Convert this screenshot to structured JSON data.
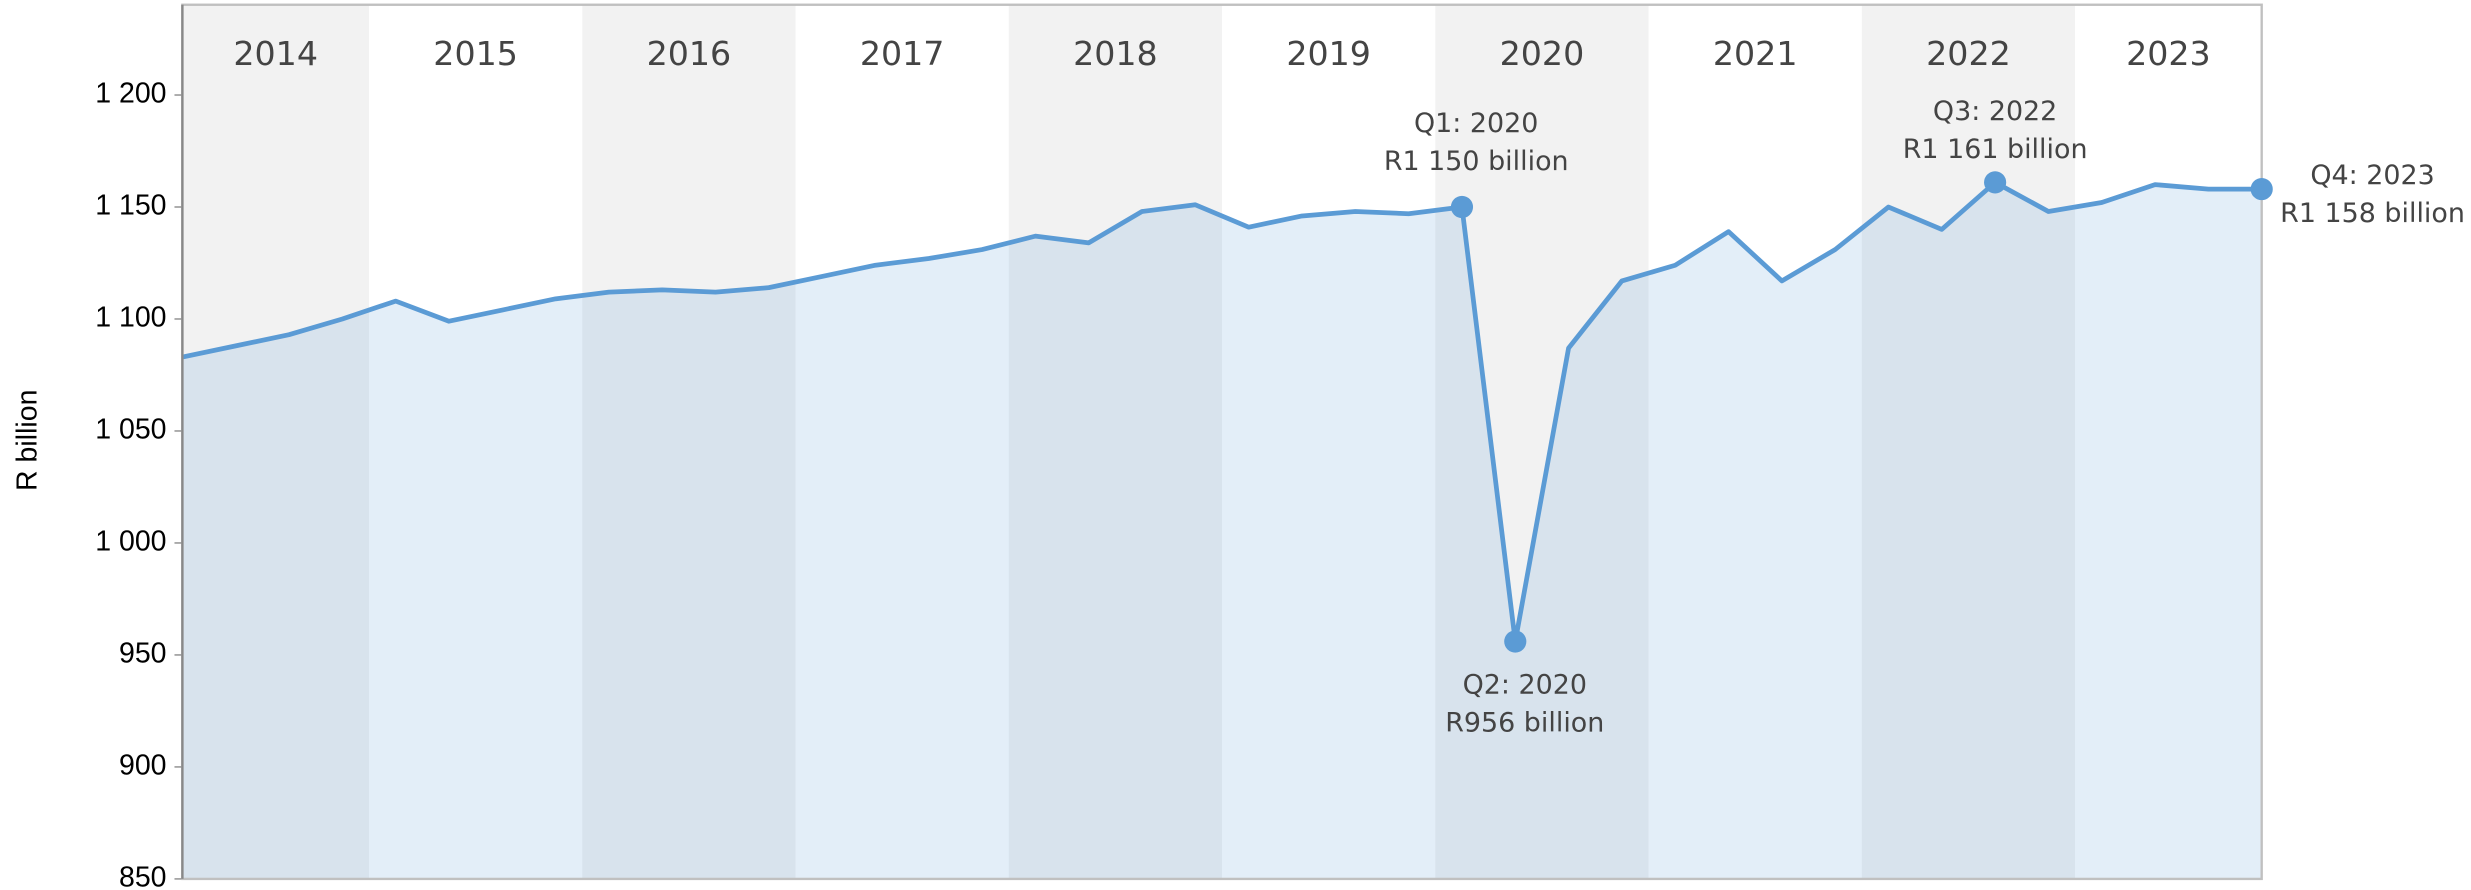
{
  "chart_data": {
    "type": "area",
    "y_label": "R billion",
    "years": [
      "2014",
      "2015",
      "2016",
      "2017",
      "2018",
      "2019",
      "2020",
      "2021",
      "2022",
      "2023"
    ],
    "categories": [
      null,
      null,
      null,
      null,
      null,
      null,
      null,
      null,
      null,
      null,
      null,
      null,
      null,
      null,
      null,
      null,
      null,
      null,
      null,
      null,
      null,
      null,
      null,
      null,
      null,
      null,
      null,
      null,
      null,
      null,
      null,
      null,
      null,
      null,
      null,
      null,
      null,
      null,
      null,
      null
    ],
    "values": [
      1083,
      1088,
      1093,
      1100,
      1108,
      1099,
      1104,
      1109,
      1112,
      1113,
      1112,
      1114,
      1119,
      1124,
      1127,
      1131,
      1137,
      1134,
      1148,
      1151,
      1141,
      1146,
      1148,
      1147,
      1150,
      956,
      1087,
      1117,
      1124,
      1139,
      1117,
      1131,
      1150,
      1140,
      1161,
      1148,
      1152,
      1160,
      1158,
      1158
    ],
    "color": "#5b9bd5",
    "ylim": [
      850,
      1200
    ],
    "yticks": [
      850,
      900,
      950,
      {
        "value": 1000,
        "label": "1 000"
      },
      {
        "value": 1050,
        "label": "1 050"
      },
      {
        "value": 1100,
        "label": "1 100"
      },
      {
        "value": 1150,
        "label": "1 150"
      },
      {
        "value": 1200,
        "label": "1 200"
      }
    ],
    "annotations": [
      {
        "lines": [
          "Q1: 2020",
          "R1 150 billion"
        ]
      },
      {
        "lines": [
          "Q2: 2020",
          "R956 billion"
        ]
      },
      {
        "lines": [
          "Q3: 2022",
          "R1 161 billion"
        ]
      },
      {
        "lines": [
          "Q4: 2023",
          "R1 158 billion"
        ]
      }
    ]
  }
}
